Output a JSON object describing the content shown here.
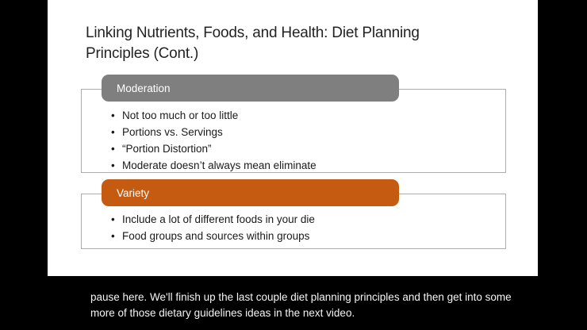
{
  "colors": {
    "background": "#000000",
    "slide_background": "#FFFFFF",
    "moderation_header_bg": "#7F7F7F",
    "variety_header_bg": "#C55A11",
    "box_border": "#ACACAC",
    "title_text": "#232323",
    "body_text": "#1A1A1A",
    "caption_text": "#F5F5F5"
  },
  "slide": {
    "title": "Linking Nutrients, Foods, and Health: Diet Planning Principles (Cont.)",
    "title_lines": [
      "Linking Nutrients, Foods, and Health: Diet Planning",
      "Principles (Cont.)"
    ],
    "bullet_glyph": "•",
    "sections": [
      {
        "header": "Moderation",
        "header_color": "#7F7F7F",
        "bullets": [
          "Not too much or too little",
          "Portions vs. Servings",
          "“Portion Distortion”",
          "Moderate doesn’t always mean eliminate"
        ]
      },
      {
        "header": "Variety",
        "header_color": "#C55A11",
        "bullets": [
          "Include a lot of different foods in your die",
          "Food groups and sources within groups"
        ]
      }
    ]
  },
  "caption": {
    "lines": [
      "pause here. We'll finish up the last couple diet planning principles and then get into some",
      "more of those dietary guidelines ideas in the next video."
    ]
  }
}
